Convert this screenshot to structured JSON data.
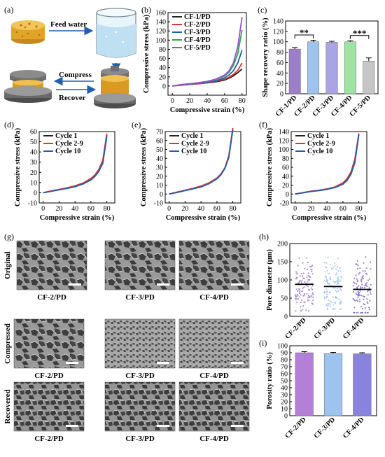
{
  "panel_labels": [
    "(a)",
    "(b)",
    "(c)",
    "(d)",
    "(e)",
    "(f)",
    "(g)",
    "(h)",
    "(i)"
  ],
  "schematic": {
    "feed_water": "Feed water",
    "compress": "Compress",
    "recover": "Recover",
    "colors": {
      "sponge": "#e0a528",
      "water": "#bfe0f2",
      "press": "#6f6f6f",
      "arrow": "#1f5fb0"
    }
  },
  "sem": {
    "row_labels": [
      "Original",
      "Compressed",
      "Recovered"
    ],
    "col_labels": [
      "CF-2/PD",
      "CF-3/PD",
      "CF-4/PD"
    ]
  },
  "chart_data": [
    {
      "id": "b",
      "type": "line",
      "xlabel": "Compressive strain (%)",
      "ylabel": "Compressive stress (kPa)",
      "xlim": [
        -5,
        85
      ],
      "ylim": [
        -20,
        160
      ],
      "xticks": [
        0,
        20,
        40,
        60,
        80
      ],
      "yticks": [
        0,
        20,
        40,
        60,
        80,
        100,
        120,
        140,
        160
      ],
      "legend": "top-left",
      "series": [
        {
          "name": "CF-1/PD",
          "color": "#222222",
          "x": [
            0,
            10,
            20,
            30,
            40,
            50,
            60,
            65,
            70,
            75,
            80
          ],
          "y": [
            0,
            2,
            3.5,
            5,
            7,
            9,
            13,
            17,
            22,
            29,
            37
          ]
        },
        {
          "name": "CF-2/PD",
          "color": "#e03030",
          "x": [
            0,
            10,
            20,
            30,
            40,
            50,
            60,
            65,
            70,
            75,
            80
          ],
          "y": [
            0,
            2,
            3.5,
            5,
            7,
            10,
            15,
            19,
            25,
            34,
            50
          ]
        },
        {
          "name": "CF-3/PD",
          "color": "#1f5fb0",
          "x": [
            0,
            10,
            20,
            30,
            40,
            50,
            60,
            65,
            70,
            75,
            80
          ],
          "y": [
            0,
            2.5,
            4,
            6,
            8,
            11,
            18,
            24,
            33,
            50,
            78
          ]
        },
        {
          "name": "CF-4/PD",
          "color": "#2aa84a",
          "x": [
            0,
            10,
            20,
            30,
            40,
            50,
            60,
            65,
            70,
            75,
            80
          ],
          "y": [
            0,
            3,
            5,
            7,
            10,
            14,
            22,
            30,
            44,
            70,
            122
          ]
        },
        {
          "name": "CF-5/PD",
          "color": "#9b4fd0",
          "x": [
            0,
            10,
            20,
            30,
            40,
            50,
            60,
            65,
            70,
            75,
            80
          ],
          "y": [
            0,
            3,
            5,
            7,
            10,
            15,
            24,
            33,
            50,
            85,
            150
          ]
        }
      ]
    },
    {
      "id": "c",
      "type": "bar",
      "ylabel": "Shape recovery ratio (%)",
      "ylim": [
        0,
        140
      ],
      "yticks": [
        0,
        20,
        40,
        60,
        80,
        100,
        120,
        140
      ],
      "categories": [
        "CF-1/PD",
        "CF-2/PD",
        "CF-3/PD",
        "CF-4/PD",
        "CF-5/PD"
      ],
      "values": [
        86,
        100,
        99,
        100,
        63
      ],
      "errors": [
        3,
        3,
        2,
        2,
        6
      ],
      "colors": [
        "#9d7ec9",
        "#9ec3ef",
        "#a9a4e6",
        "#9fe3a2",
        "#c6c6c6"
      ],
      "significance": [
        {
          "from": 0,
          "to": 1,
          "label": "**"
        },
        {
          "from": 3,
          "to": 4,
          "label": "***"
        }
      ]
    },
    {
      "id": "d",
      "type": "line",
      "xlabel": "Compressive strain (%)",
      "ylabel": "Compressive stress (kPa)",
      "xlim": [
        -5,
        90
      ],
      "ylim": [
        -10,
        60
      ],
      "xticks": [
        0,
        20,
        40,
        60,
        80
      ],
      "yticks": [
        -10,
        0,
        10,
        20,
        30,
        40,
        50,
        60
      ],
      "legend": "top-left",
      "series": [
        {
          "name": "Cycle 1",
          "color": "#222222",
          "x": [
            0,
            10,
            20,
            30,
            40,
            50,
            60,
            65,
            70,
            75,
            80
          ],
          "y": [
            0,
            1.5,
            3,
            4.5,
            6.5,
            9,
            13.5,
            17,
            22.5,
            31,
            57
          ]
        },
        {
          "name": "Cycle 2-9",
          "color": "#e03030",
          "x": [
            0,
            10,
            20,
            30,
            40,
            50,
            60,
            65,
            70,
            75,
            80
          ],
          "y": [
            0,
            1.8,
            3.3,
            4.8,
            6.8,
            9.5,
            14,
            17.5,
            23,
            32,
            58
          ]
        },
        {
          "name": "Cycle 10",
          "color": "#1f5fb0",
          "x": [
            0,
            10,
            20,
            30,
            40,
            50,
            60,
            65,
            70,
            75,
            80
          ],
          "y": [
            0,
            1.4,
            2.8,
            4.2,
            6,
            8.5,
            12.5,
            16,
            21,
            29,
            55
          ]
        }
      ]
    },
    {
      "id": "e",
      "type": "line",
      "xlabel": "Compressive strain (%)",
      "ylabel": "Compressive stress (kPa)",
      "xlim": [
        -5,
        90
      ],
      "ylim": [
        -10,
        70
      ],
      "xticks": [
        0,
        20,
        40,
        60,
        80
      ],
      "yticks": [
        -10,
        0,
        10,
        20,
        30,
        40,
        50,
        60,
        70
      ],
      "legend": "top-left",
      "series": [
        {
          "name": "Cycle 1",
          "color": "#222222",
          "x": [
            0,
            10,
            20,
            30,
            40,
            50,
            60,
            65,
            70,
            75,
            80
          ],
          "y": [
            0,
            2,
            4,
            6,
            8.5,
            12,
            17.5,
            22,
            29,
            42,
            73
          ]
        },
        {
          "name": "Cycle 2-9",
          "color": "#e03030",
          "x": [
            0,
            10,
            20,
            30,
            40,
            50,
            60,
            65,
            70,
            75,
            80
          ],
          "y": [
            0,
            2.2,
            4.3,
            6.4,
            9,
            12.5,
            18,
            22.5,
            29.5,
            43,
            74
          ]
        },
        {
          "name": "Cycle 10",
          "color": "#1f5fb0",
          "x": [
            0,
            10,
            20,
            30,
            40,
            50,
            60,
            65,
            70,
            75,
            80
          ],
          "y": [
            0,
            1.8,
            3.8,
            5.8,
            8,
            11.5,
            17,
            21.5,
            28.5,
            41,
            72
          ]
        }
      ]
    },
    {
      "id": "f",
      "type": "line",
      "xlabel": "Compressive strain (%)",
      "ylabel": "Compressive stress (kPa)",
      "xlim": [
        -5,
        90
      ],
      "ylim": [
        -20,
        140
      ],
      "xticks": [
        0,
        20,
        40,
        60,
        80
      ],
      "yticks": [
        -20,
        0,
        20,
        40,
        60,
        80,
        100,
        120,
        140
      ],
      "legend": "top-left",
      "series": [
        {
          "name": "Cycle 1",
          "color": "#222222",
          "x": [
            0,
            10,
            20,
            30,
            40,
            50,
            60,
            65,
            70,
            75,
            80
          ],
          "y": [
            0,
            3,
            6,
            8,
            11,
            15,
            23,
            31,
            45,
            72,
            135
          ]
        },
        {
          "name": "Cycle 2-9",
          "color": "#e03030",
          "x": [
            0,
            10,
            20,
            30,
            40,
            50,
            60,
            65,
            70,
            75,
            80
          ],
          "y": [
            0,
            3.2,
            6.3,
            8.5,
            11.5,
            16,
            25,
            34,
            49,
            78,
            136
          ]
        },
        {
          "name": "Cycle 10",
          "color": "#1f5fb0",
          "x": [
            0,
            10,
            20,
            30,
            40,
            50,
            60,
            65,
            70,
            75,
            80
          ],
          "y": [
            0,
            2.8,
            5.7,
            7.6,
            10.5,
            14.5,
            22,
            30,
            44,
            70,
            133
          ]
        }
      ]
    },
    {
      "id": "h",
      "type": "scatter",
      "ylabel": "Pore diameter (μm)",
      "ylim": [
        0,
        200
      ],
      "yticks": [
        0,
        50,
        100,
        150,
        200
      ],
      "categories": [
        "CF-2/PD",
        "CF-3/PD",
        "CF-4/PD"
      ],
      "means": [
        88,
        82,
        74
      ],
      "ranges": [
        [
          15,
          160
        ],
        [
          20,
          168
        ],
        [
          10,
          165
        ]
      ],
      "colors": [
        "#9d7ec9",
        "#9ec3ef",
        "#7f6fd6"
      ]
    },
    {
      "id": "i",
      "type": "bar",
      "ylabel": "Porosity ratio (%)",
      "ylim": [
        0,
        100
      ],
      "yticks": [
        0,
        10,
        20,
        30,
        40,
        50,
        60,
        70,
        80,
        90,
        100
      ],
      "categories": [
        "CF-2/PD",
        "CF-3/PD",
        "CF-4/PD"
      ],
      "values": [
        90,
        89,
        88.5
      ],
      "errors": [
        1.5,
        1.5,
        1.5
      ],
      "colors": [
        "#b47fd6",
        "#9ec3ef",
        "#8a83de"
      ]
    }
  ]
}
